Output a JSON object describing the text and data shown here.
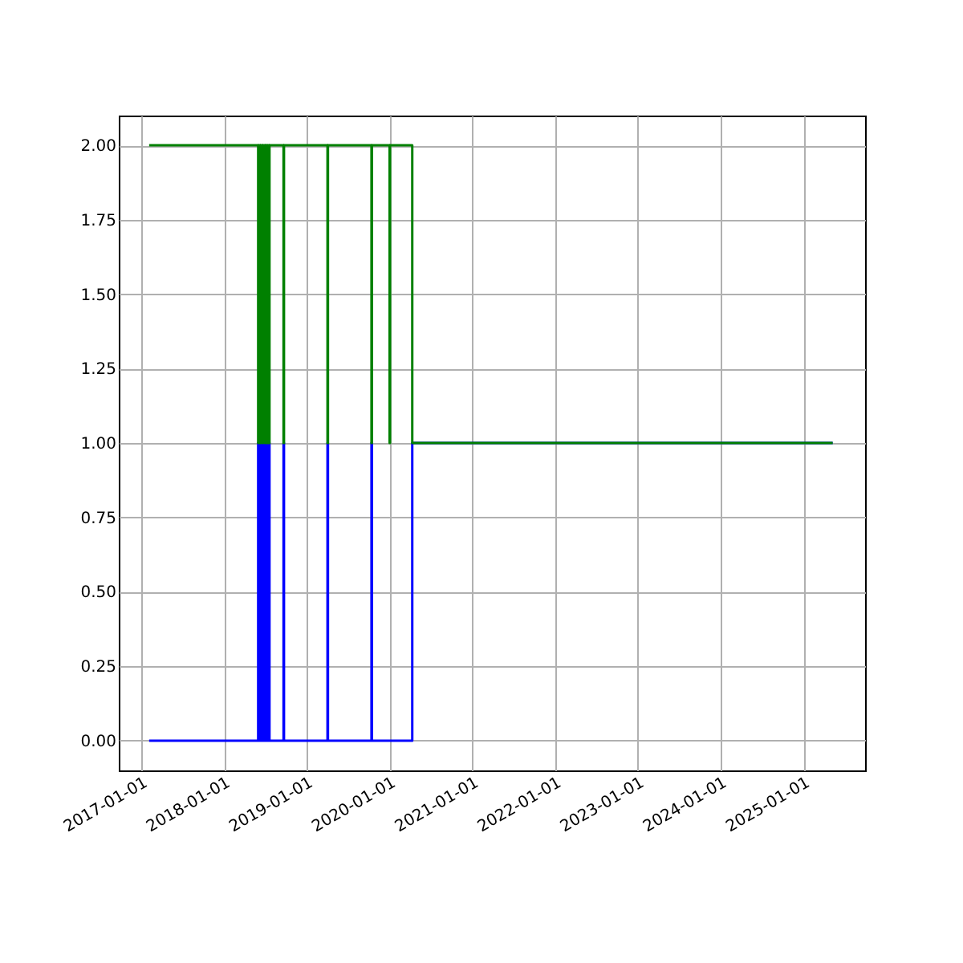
{
  "chart_data": {
    "type": "step",
    "series": [
      {
        "color": "#0000ff",
        "x": [
          "2017-02-05",
          "2018-06-01",
          "2018-06-03",
          "2018-06-10",
          "2018-06-12",
          "2018-06-20",
          "2018-06-22",
          "2018-07-01",
          "2018-07-03",
          "2018-07-10",
          "2018-07-12",
          "2018-07-19",
          "2018-07-21",
          "2018-09-21",
          "2018-09-23",
          "2019-04-03",
          "2019-04-05",
          "2019-10-14",
          "2019-10-16",
          "2020-04-11",
          "2025-05-10"
        ],
        "values": [
          0,
          1,
          0,
          1,
          0,
          1,
          0,
          1,
          0,
          1,
          0,
          1,
          0,
          1,
          0,
          1,
          0,
          1,
          0,
          1,
          1
        ]
      },
      {
        "color": "#008000",
        "x": [
          "2017-02-05",
          "2018-06-01",
          "2018-06-03",
          "2018-06-10",
          "2018-06-12",
          "2018-06-20",
          "2018-06-22",
          "2018-07-01",
          "2018-07-03",
          "2018-07-10",
          "2018-07-12",
          "2018-07-19",
          "2018-07-21",
          "2018-09-21",
          "2018-09-23",
          "2019-04-03",
          "2019-04-05",
          "2019-10-14",
          "2019-10-16",
          "2020-01-02",
          "2020-01-04",
          "2020-04-11",
          "2025-05-10"
        ],
        "values": [
          2,
          1,
          2,
          1,
          2,
          1,
          2,
          1,
          2,
          1,
          2,
          1,
          2,
          1,
          2,
          1,
          2,
          1,
          2,
          1,
          2,
          1,
          1
        ]
      }
    ],
    "xlim": [
      "2016-09-24",
      "2025-09-30"
    ],
    "xticks": [
      {
        "value": "2017-01-01",
        "label": "2017-01-01"
      },
      {
        "value": "2018-01-01",
        "label": "2018-01-01"
      },
      {
        "value": "2019-01-01",
        "label": "2019-01-01"
      },
      {
        "value": "2020-01-01",
        "label": "2020-01-01"
      },
      {
        "value": "2021-01-01",
        "label": "2021-01-01"
      },
      {
        "value": "2022-01-01",
        "label": "2022-01-01"
      },
      {
        "value": "2023-01-01",
        "label": "2023-01-01"
      },
      {
        "value": "2024-01-01",
        "label": "2024-01-01"
      },
      {
        "value": "2025-01-01",
        "label": "2025-01-01"
      }
    ],
    "ylim": [
      -0.1,
      2.1
    ],
    "yticks": [
      {
        "value": 0,
        "label": "0.00"
      },
      {
        "value": 0.25,
        "label": "0.25"
      },
      {
        "value": 0.5,
        "label": "0.50"
      },
      {
        "value": 0.75,
        "label": "0.75"
      },
      {
        "value": 1,
        "label": "1.00"
      },
      {
        "value": 1.25,
        "label": "1.25"
      },
      {
        "value": 1.5,
        "label": "1.50"
      },
      {
        "value": 1.75,
        "label": "1.75"
      },
      {
        "value": 2,
        "label": "2.00"
      }
    ],
    "grid": true,
    "line_style": "solid",
    "marker": "none"
  }
}
